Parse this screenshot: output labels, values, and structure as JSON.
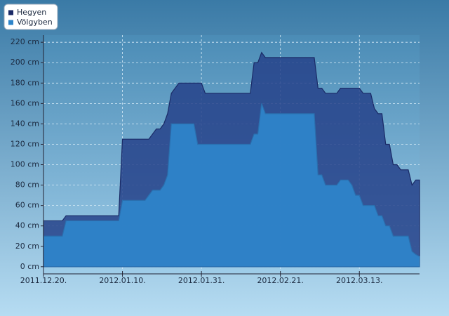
{
  "chart_data": {
    "type": "area",
    "legend": "top-left",
    "grid": true,
    "x": [
      "2011-12-20",
      "2011-12-21",
      "2011-12-22",
      "2011-12-23",
      "2011-12-24",
      "2011-12-25",
      "2011-12-26",
      "2011-12-27",
      "2011-12-28",
      "2011-12-29",
      "2011-12-30",
      "2011-12-31",
      "2012-01-01",
      "2012-01-02",
      "2012-01-03",
      "2012-01-04",
      "2012-01-05",
      "2012-01-06",
      "2012-01-07",
      "2012-01-08",
      "2012-01-09",
      "2012-01-10",
      "2012-01-11",
      "2012-01-12",
      "2012-01-13",
      "2012-01-14",
      "2012-01-15",
      "2012-01-16",
      "2012-01-17",
      "2012-01-18",
      "2012-01-19",
      "2012-01-20",
      "2012-01-21",
      "2012-01-22",
      "2012-01-23",
      "2012-01-24",
      "2012-01-25",
      "2012-01-26",
      "2012-01-27",
      "2012-01-28",
      "2012-01-29",
      "2012-01-30",
      "2012-01-31",
      "2012-02-01",
      "2012-02-02",
      "2012-02-03",
      "2012-02-04",
      "2012-02-05",
      "2012-02-06",
      "2012-02-07",
      "2012-02-08",
      "2012-02-09",
      "2012-02-10",
      "2012-02-11",
      "2012-02-12",
      "2012-02-13",
      "2012-02-14",
      "2012-02-15",
      "2012-02-16",
      "2012-02-17",
      "2012-02-18",
      "2012-02-19",
      "2012-02-20",
      "2012-02-21",
      "2012-02-22",
      "2012-02-23",
      "2012-02-24",
      "2012-02-25",
      "2012-02-26",
      "2012-02-27",
      "2012-02-28",
      "2012-02-29",
      "2012-03-01",
      "2012-03-02",
      "2012-03-03",
      "2012-03-04",
      "2012-03-05",
      "2012-03-06",
      "2012-03-07",
      "2012-03-08",
      "2012-03-09",
      "2012-03-10",
      "2012-03-11",
      "2012-03-12",
      "2012-03-13",
      "2012-03-14",
      "2012-03-15",
      "2012-03-16",
      "2012-03-17",
      "2012-03-18",
      "2012-03-19",
      "2012-03-20",
      "2012-03-21",
      "2012-03-22",
      "2012-03-23",
      "2012-03-24",
      "2012-03-25",
      "2012-03-26",
      "2012-03-27",
      "2012-03-28",
      "2012-03-29"
    ],
    "xlim": [
      "2011-12-20",
      "2012-03-29"
    ],
    "xticks": [
      {
        "value": "2011-12-20",
        "label": "2011.12.20."
      },
      {
        "value": "2012-01-10",
        "label": "2012.01.10."
      },
      {
        "value": "2012-01-31",
        "label": "2012.01.31."
      },
      {
        "value": "2012-02-21",
        "label": "2012.02.21."
      },
      {
        "value": "2012-03-13",
        "label": "2012.03.13."
      }
    ],
    "ylim": [
      -7,
      227
    ],
    "yticks": [
      {
        "value": 0,
        "label": "0 cm"
      },
      {
        "value": 20,
        "label": "20 cm"
      },
      {
        "value": 40,
        "label": "40 cm"
      },
      {
        "value": 60,
        "label": "60 cm"
      },
      {
        "value": 80,
        "label": "80 cm"
      },
      {
        "value": 100,
        "label": "100 cm"
      },
      {
        "value": 120,
        "label": "120 cm"
      },
      {
        "value": 140,
        "label": "140 cm"
      },
      {
        "value": 160,
        "label": "160 cm"
      },
      {
        "value": 180,
        "label": "180 cm"
      },
      {
        "value": 200,
        "label": "200 cm"
      },
      {
        "value": 220,
        "label": "220 cm"
      }
    ],
    "series": [
      {
        "name": "Hegyen",
        "color": "#26428a",
        "values": [
          45,
          45,
          45,
          45,
          45,
          45,
          50,
          50,
          50,
          50,
          50,
          50,
          50,
          50,
          50,
          50,
          50,
          50,
          50,
          50,
          50,
          125,
          125,
          125,
          125,
          125,
          125,
          125,
          125,
          130,
          135,
          135,
          140,
          150,
          170,
          175,
          180,
          180,
          180,
          180,
          180,
          180,
          180,
          170,
          170,
          170,
          170,
          170,
          170,
          170,
          170,
          170,
          170,
          170,
          170,
          170,
          200,
          200,
          210,
          205,
          205,
          205,
          205,
          205,
          205,
          205,
          205,
          205,
          205,
          205,
          205,
          205,
          205,
          175,
          175,
          170,
          170,
          170,
          170,
          175,
          175,
          175,
          175,
          175,
          175,
          170,
          170,
          170,
          155,
          150,
          150,
          120,
          120,
          100,
          100,
          95,
          95,
          95,
          80,
          85,
          85
        ]
      },
      {
        "name": "Völgyben",
        "color": "#2e84c9",
        "values": [
          30,
          30,
          30,
          30,
          30,
          30,
          45,
          45,
          45,
          45,
          45,
          45,
          45,
          45,
          45,
          45,
          45,
          45,
          45,
          45,
          45,
          65,
          65,
          65,
          65,
          65,
          65,
          65,
          70,
          75,
          75,
          75,
          80,
          90,
          140,
          140,
          140,
          140,
          140,
          140,
          140,
          120,
          120,
          120,
          120,
          120,
          120,
          120,
          120,
          120,
          120,
          120,
          120,
          120,
          120,
          120,
          130,
          130,
          160,
          150,
          150,
          150,
          150,
          150,
          150,
          150,
          150,
          150,
          150,
          150,
          150,
          150,
          150,
          90,
          90,
          80,
          80,
          80,
          80,
          85,
          85,
          85,
          80,
          70,
          70,
          60,
          60,
          60,
          60,
          50,
          50,
          40,
          40,
          30,
          30,
          30,
          30,
          30,
          15,
          12,
          10
        ]
      }
    ]
  }
}
